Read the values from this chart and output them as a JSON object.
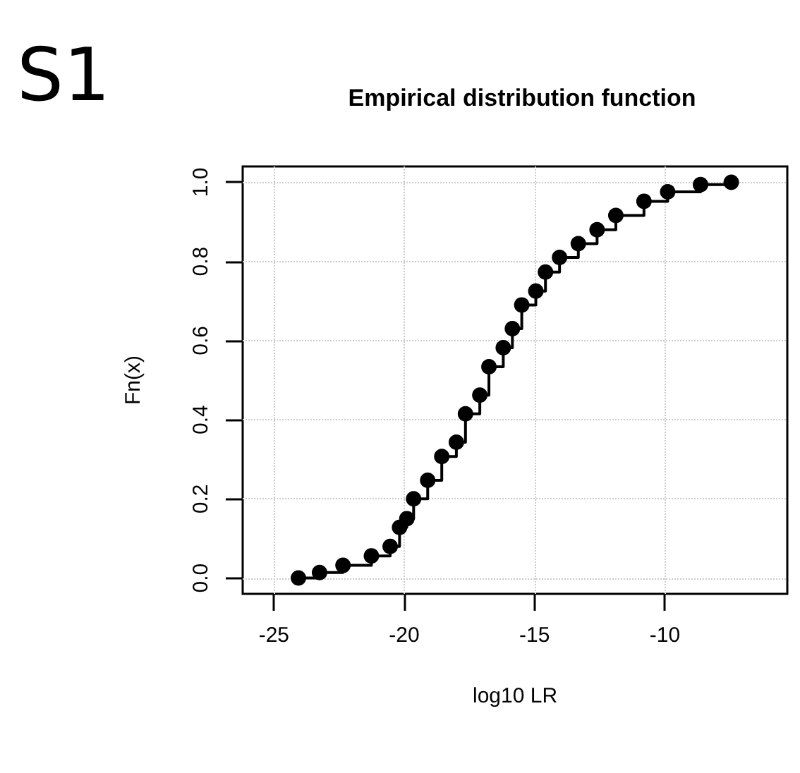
{
  "chart_data": {
    "type": "step",
    "title": "Empirical distribution function",
    "xlabel": "log10 LR",
    "ylabel": "Fn(x)",
    "annotations": [
      "S1"
    ],
    "x": [
      -24.06,
      -23.25,
      -22.35,
      -21.26,
      -20.54,
      -20.18,
      -19.9,
      -19.64,
      -19.1,
      -18.56,
      -18.0,
      -17.65,
      -17.1,
      -16.75,
      -16.2,
      -15.85,
      -15.49,
      -14.95,
      -14.58,
      -14.04,
      -13.32,
      -12.6,
      -11.88,
      -10.8,
      -9.89,
      -8.63,
      -7.45
    ],
    "series": [
      {
        "color": "#000000",
        "values": [
          0.0,
          0.014,
          0.032,
          0.056,
          0.08,
          0.128,
          0.15,
          0.2,
          0.247,
          0.307,
          0.343,
          0.415,
          0.462,
          0.534,
          0.582,
          0.63,
          0.69,
          0.725,
          0.773,
          0.81,
          0.845,
          0.88,
          0.916,
          0.952,
          0.976,
          0.994,
          1.0
        ]
      }
    ],
    "xlim": [
      -26.2,
      -5.3
    ],
    "xticks": [
      -25,
      -20,
      -15,
      -10
    ],
    "ylim": [
      -0.04,
      1.04
    ],
    "yticks": [
      {
        "value": 0,
        "label": "0.0"
      },
      0.2,
      0.4,
      0.6,
      0.8,
      {
        "value": 1,
        "label": "1.0"
      }
    ],
    "grid": true,
    "marker": "circle",
    "line_style": "solid"
  }
}
